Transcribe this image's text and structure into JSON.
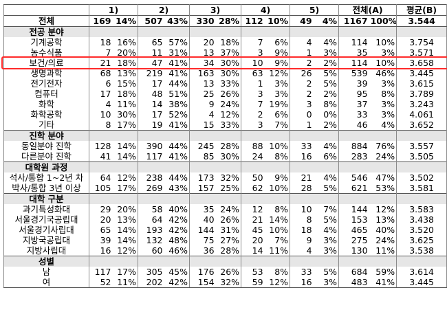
{
  "columns": {
    "c1": "1)",
    "c2": "2)",
    "c3": "3)",
    "c4": "4)",
    "c5": "5)",
    "total": "전체(A)",
    "mean": "평균(B)"
  },
  "overall": {
    "label": "전체",
    "cells": [
      "169",
      "14%",
      "507",
      "43%",
      "330",
      "28%",
      "112",
      "10%",
      "49",
      "4%",
      "1167",
      "100%"
    ],
    "mean": "3.544"
  },
  "sections": [
    {
      "title": "전공 분야",
      "rows": [
        {
          "label": "기계공학",
          "cells": [
            "18",
            "16%",
            "65",
            "57%",
            "20",
            "18%",
            "7",
            "6%",
            "4",
            "4%",
            "114",
            "10%"
          ],
          "mean": "3.754"
        },
        {
          "label": "농수식품",
          "cells": [
            "7",
            "20%",
            "11",
            "31%",
            "13",
            "37%",
            "3",
            "9%",
            "1",
            "3%",
            "35",
            "3%"
          ],
          "mean": "3.571"
        },
        {
          "label": "보건/의료",
          "cells": [
            "21",
            "18%",
            "47",
            "41%",
            "34",
            "30%",
            "10",
            "9%",
            "2",
            "2%",
            "114",
            "10%"
          ],
          "mean": "3.658"
        },
        {
          "label": "생명과학",
          "cells": [
            "68",
            "13%",
            "219",
            "41%",
            "163",
            "30%",
            "63",
            "12%",
            "26",
            "5%",
            "539",
            "46%"
          ],
          "mean": "3.445"
        },
        {
          "label": "전기전자",
          "cells": [
            "6",
            "15%",
            "17",
            "44%",
            "13",
            "33%",
            "1",
            "3%",
            "2",
            "5%",
            "39",
            "3%"
          ],
          "mean": "3.615"
        },
        {
          "label": "컴퓨터",
          "cells": [
            "17",
            "18%",
            "48",
            "51%",
            "25",
            "26%",
            "3",
            "3%",
            "2",
            "2%",
            "95",
            "8%"
          ],
          "mean": "3.789"
        },
        {
          "label": "화학",
          "cells": [
            "4",
            "11%",
            "14",
            "38%",
            "9",
            "24%",
            "7",
            "19%",
            "3",
            "8%",
            "37",
            "3%"
          ],
          "mean": "3.243"
        },
        {
          "label": "화학공학",
          "cells": [
            "10",
            "30%",
            "17",
            "52%",
            "4",
            "12%",
            "2",
            "6%",
            "0",
            "0%",
            "33",
            "3%"
          ],
          "mean": "4.061"
        },
        {
          "label": "기타",
          "cells": [
            "8",
            "17%",
            "19",
            "41%",
            "15",
            "33%",
            "3",
            "7%",
            "1",
            "2%",
            "46",
            "4%"
          ],
          "mean": "3.652"
        }
      ]
    },
    {
      "title": "진학 분야",
      "rows": [
        {
          "label": "동일분야 진학",
          "cells": [
            "128",
            "14%",
            "390",
            "44%",
            "245",
            "28%",
            "88",
            "10%",
            "33",
            "4%",
            "884",
            "76%"
          ],
          "mean": "3.557"
        },
        {
          "label": "다른분야 진학",
          "cells": [
            "41",
            "14%",
            "117",
            "41%",
            "85",
            "30%",
            "24",
            "8%",
            "16",
            "6%",
            "283",
            "24%"
          ],
          "mean": "3.505"
        }
      ]
    },
    {
      "title": "대학원 과정",
      "rows": [
        {
          "label": "석사/통합 1~2년 차",
          "cells": [
            "64",
            "12%",
            "238",
            "44%",
            "173",
            "32%",
            "50",
            "9%",
            "21",
            "4%",
            "546",
            "47%"
          ],
          "mean": "3.502"
        },
        {
          "label": "박사/통합 3년 이상",
          "cells": [
            "105",
            "17%",
            "269",
            "43%",
            "157",
            "25%",
            "62",
            "10%",
            "28",
            "5%",
            "621",
            "53%"
          ],
          "mean": "3.581"
        }
      ]
    },
    {
      "title": "대학 구분",
      "rows": [
        {
          "label": "과기특성화대",
          "cells": [
            "29",
            "20%",
            "58",
            "40%",
            "35",
            "24%",
            "12",
            "8%",
            "10",
            "7%",
            "144",
            "12%"
          ],
          "mean": "3.583"
        },
        {
          "label": "서울경기국공립대",
          "cells": [
            "20",
            "13%",
            "64",
            "42%",
            "40",
            "26%",
            "21",
            "14%",
            "8",
            "5%",
            "153",
            "13%"
          ],
          "mean": "3.438"
        },
        {
          "label": "서울경기사립대",
          "cells": [
            "65",
            "14%",
            "193",
            "42%",
            "144",
            "31%",
            "45",
            "10%",
            "18",
            "4%",
            "465",
            "40%"
          ],
          "mean": "3.520"
        },
        {
          "label": "지방국공립대",
          "cells": [
            "39",
            "14%",
            "132",
            "48%",
            "75",
            "27%",
            "20",
            "7%",
            "9",
            "3%",
            "275",
            "24%"
          ],
          "mean": "3.625"
        },
        {
          "label": "지방사립대",
          "cells": [
            "16",
            "12%",
            "60",
            "46%",
            "36",
            "28%",
            "14",
            "11%",
            "4",
            "3%",
            "130",
            "11%"
          ],
          "mean": "3.538"
        }
      ]
    },
    {
      "title": "성별",
      "rows": [
        {
          "label": "남",
          "cells": [
            "117",
            "17%",
            "305",
            "45%",
            "176",
            "26%",
            "53",
            "8%",
            "33",
            "5%",
            "684",
            "59%"
          ],
          "mean": "3.614"
        },
        {
          "label": "여",
          "cells": [
            "52",
            "11%",
            "202",
            "42%",
            "154",
            "32%",
            "59",
            "12%",
            "16",
            "3%",
            "483",
            "41%"
          ],
          "mean": "3.445"
        }
      ]
    }
  ],
  "highlight": {
    "row_label": "보건/의료",
    "color": "#ff2a2a"
  }
}
